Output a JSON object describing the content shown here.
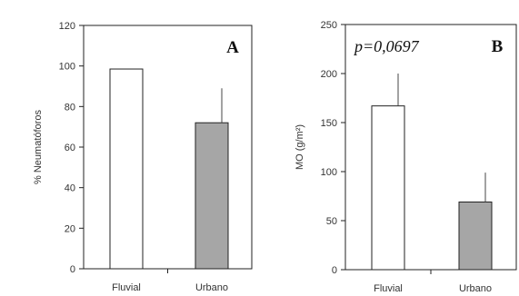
{
  "chart_data": [
    {
      "type": "bar",
      "panel_label": "A",
      "ylabel": "% Neumatóforos",
      "ylim": [
        0,
        120
      ],
      "yticks": [
        "0",
        "20",
        "40",
        "60",
        "80",
        "100",
        "120"
      ],
      "categories": [
        "Fluvial",
        "Urbano"
      ],
      "values": [
        98.5,
        72
      ],
      "errors": [
        0,
        17
      ],
      "bar_colors": [
        "#ffffff",
        "#a6a6a6"
      ],
      "annotation": ""
    },
    {
      "type": "bar",
      "panel_label": "B",
      "ylabel": "MO (g/m²)",
      "ylim": [
        0,
        250
      ],
      "yticks": [
        "0",
        "50",
        "100",
        "150",
        "200",
        "250"
      ],
      "categories": [
        "Fluvial",
        "Urbano"
      ],
      "values": [
        167,
        69
      ],
      "errors": [
        33,
        30
      ],
      "bar_colors": [
        "#ffffff",
        "#a6a6a6"
      ],
      "annotation": "p=0,0697"
    }
  ]
}
